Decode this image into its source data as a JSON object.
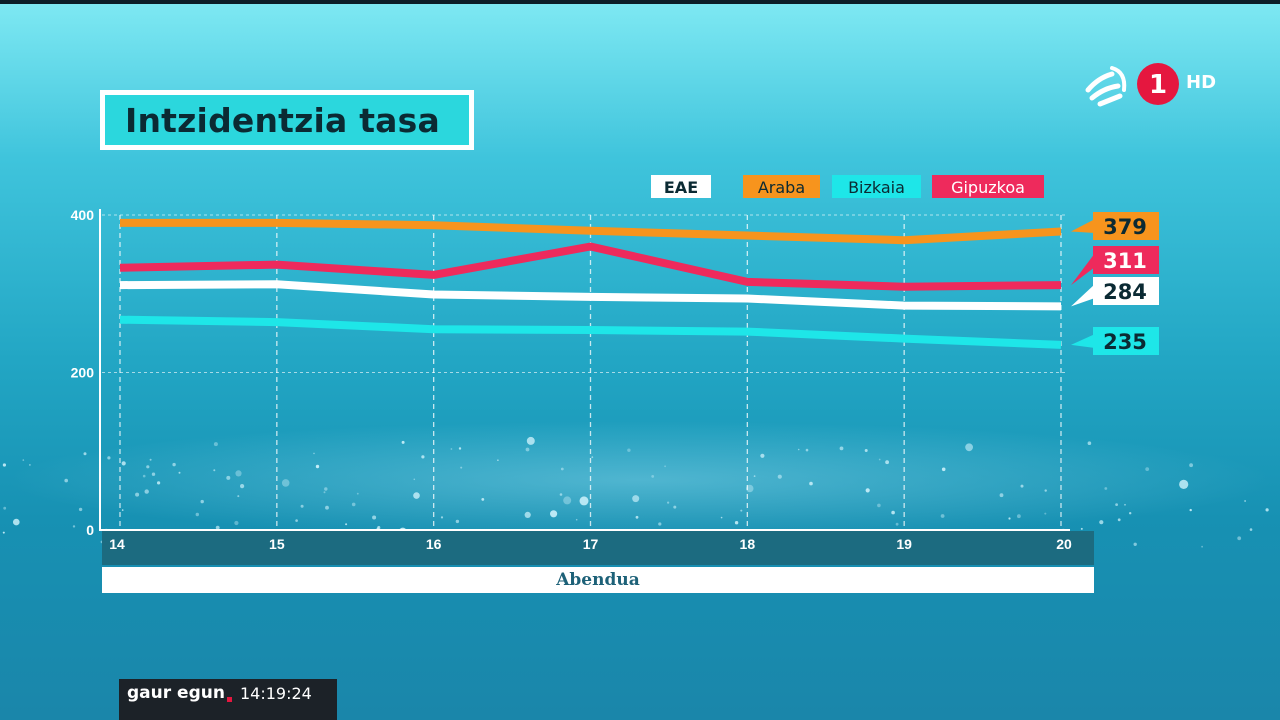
{
  "chart_data": {
    "type": "line",
    "title": "Intzidentzia tasa",
    "xlabel": "Abendua",
    "ylabel": "",
    "x": [
      "14",
      "15",
      "16",
      "17",
      "18",
      "19",
      "20"
    ],
    "yticks": [
      "400",
      "200",
      "0"
    ],
    "ylim": [
      0,
      400
    ],
    "grid": true,
    "legend_position": "top-right",
    "series": [
      {
        "name": "EAE",
        "color": "#ffffff",
        "values": [
          311,
          312,
          299,
          296,
          294,
          285,
          284
        ],
        "end_label": "284"
      },
      {
        "name": "Araba",
        "color": "#f7941d",
        "values": [
          390,
          390,
          387,
          380,
          374,
          368,
          379
        ],
        "end_label": "379"
      },
      {
        "name": "Bizkaia",
        "color": "#1ee6e8",
        "values": [
          267,
          264,
          255,
          254,
          252,
          243,
          235
        ],
        "end_label": "235"
      },
      {
        "name": "Gipuzkoa",
        "color": "#ee2a5c",
        "values": [
          333,
          337,
          324,
          360,
          315,
          309,
          311
        ],
        "end_label": "311"
      }
    ]
  },
  "overlay": {
    "channel_badge": "1",
    "hd_label": "HD",
    "program": "gaur egun",
    "time": "14:19:24"
  }
}
